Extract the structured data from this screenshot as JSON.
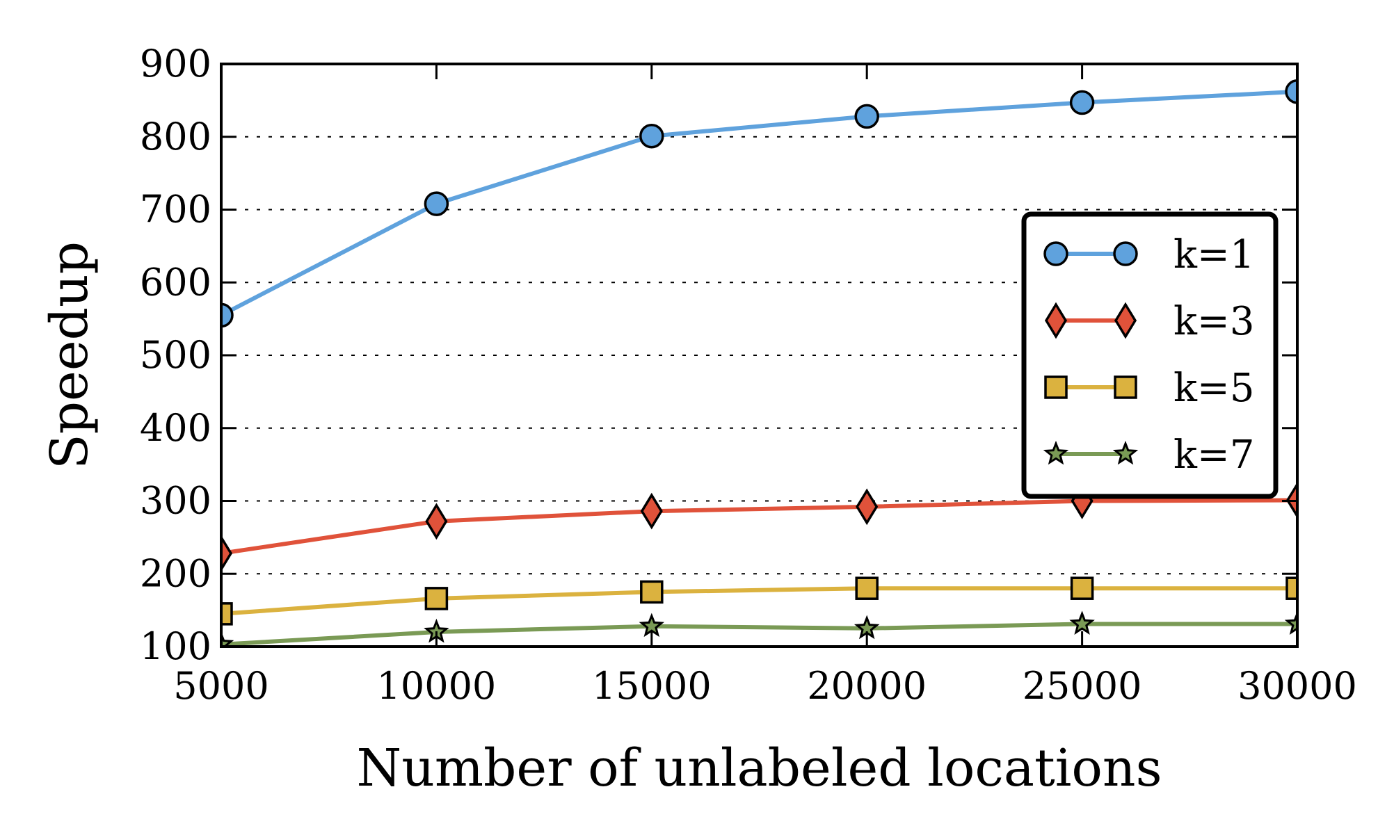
{
  "chart_data": {
    "type": "line",
    "title": "",
    "xlabel": "Number of unlabeled locations",
    "ylabel": "Speedup",
    "x": [
      5000,
      10000,
      15000,
      20000,
      25000,
      30000
    ],
    "xlim": [
      5000,
      30000
    ],
    "ylim": [
      100,
      900
    ],
    "xticks": [
      "5000",
      "10000",
      "15000",
      "20000",
      "25000",
      "30000"
    ],
    "yticks": [
      "100",
      "200",
      "300",
      "400",
      "500",
      "600",
      "700",
      "800",
      "900"
    ],
    "grid": "horizontal dotted",
    "legend_position": "center-right",
    "series": [
      {
        "name": "k=1",
        "values": [
          555,
          708,
          801,
          828,
          847,
          862
        ],
        "color": "#5fa2dd",
        "marker": "circle"
      },
      {
        "name": "k=3",
        "values": [
          228,
          272,
          286,
          292,
          300,
          301
        ],
        "color": "#e0523a",
        "marker": "diamond"
      },
      {
        "name": "k=5",
        "values": [
          145,
          166,
          175,
          180,
          180,
          180
        ],
        "color": "#dbb23f",
        "marker": "square"
      },
      {
        "name": "k=7",
        "values": [
          103,
          120,
          128,
          125,
          131,
          131
        ],
        "color": "#7a9a55",
        "marker": "star"
      }
    ]
  }
}
